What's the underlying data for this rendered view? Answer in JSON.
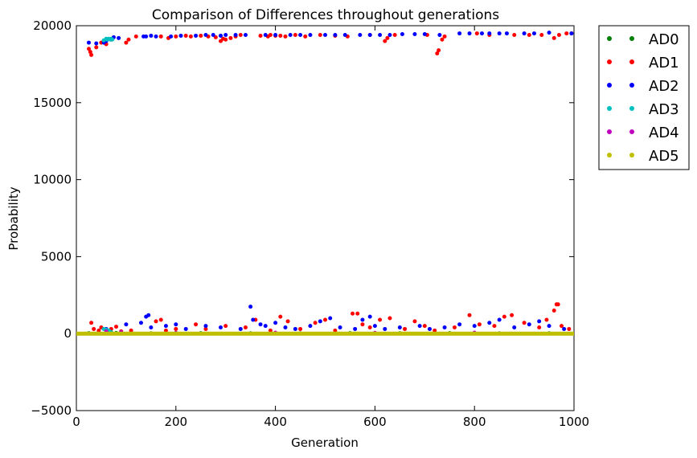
{
  "chart_data": {
    "type": "scatter",
    "title": "Comparison of Differences throughout generations",
    "xlabel": "Generation",
    "ylabel": "Probability",
    "xlim": [
      0,
      1000
    ],
    "ylim": [
      -5000,
      20000
    ],
    "xticks": [
      0,
      200,
      400,
      600,
      800,
      1000
    ],
    "yticks": [
      -5000,
      0,
      5000,
      10000,
      15000,
      20000
    ],
    "grid": false,
    "legend_position": "outside-right",
    "series": [
      {
        "name": "AD0",
        "color": "#008000",
        "points": [
          [
            25,
            30
          ],
          [
            80,
            40
          ],
          [
            150,
            20
          ],
          [
            250,
            30
          ],
          [
            350,
            25
          ],
          [
            450,
            20
          ],
          [
            550,
            30
          ],
          [
            650,
            25
          ],
          [
            750,
            30
          ],
          [
            850,
            20
          ],
          [
            950,
            25
          ]
        ]
      },
      {
        "name": "AD1",
        "color": "#ff0000",
        "points": [
          [
            25,
            18500
          ],
          [
            28,
            18300
          ],
          [
            30,
            18100
          ],
          [
            40,
            18600
          ],
          [
            50,
            18900
          ],
          [
            55,
            19000
          ],
          [
            60,
            18800
          ],
          [
            70,
            19100
          ],
          [
            100,
            18900
          ],
          [
            105,
            19100
          ],
          [
            120,
            19300
          ],
          [
            170,
            19300
          ],
          [
            185,
            19200
          ],
          [
            200,
            19300
          ],
          [
            220,
            19350
          ],
          [
            230,
            19300
          ],
          [
            250,
            19350
          ],
          [
            265,
            19300
          ],
          [
            280,
            19250
          ],
          [
            290,
            19000
          ],
          [
            295,
            19150
          ],
          [
            300,
            19100
          ],
          [
            310,
            19200
          ],
          [
            320,
            19300
          ],
          [
            330,
            19400
          ],
          [
            370,
            19350
          ],
          [
            385,
            19300
          ],
          [
            390,
            19400
          ],
          [
            400,
            19350
          ],
          [
            410,
            19350
          ],
          [
            420,
            19300
          ],
          [
            440,
            19400
          ],
          [
            460,
            19300
          ],
          [
            490,
            19400
          ],
          [
            520,
            19350
          ],
          [
            545,
            19300
          ],
          [
            590,
            19400
          ],
          [
            620,
            19000
          ],
          [
            625,
            19200
          ],
          [
            640,
            19400
          ],
          [
            705,
            19400
          ],
          [
            725,
            18200
          ],
          [
            728,
            18400
          ],
          [
            735,
            19100
          ],
          [
            740,
            19300
          ],
          [
            805,
            19500
          ],
          [
            830,
            19400
          ],
          [
            880,
            19400
          ],
          [
            910,
            19400
          ],
          [
            935,
            19400
          ],
          [
            960,
            19200
          ],
          [
            970,
            19400
          ],
          [
            985,
            19500
          ],
          [
            995,
            19500
          ],
          [
            30,
            700
          ],
          [
            35,
            300
          ],
          [
            45,
            200
          ],
          [
            50,
            400
          ],
          [
            70,
            300
          ],
          [
            80,
            450
          ],
          [
            90,
            150
          ],
          [
            110,
            200
          ],
          [
            160,
            800
          ],
          [
            170,
            900
          ],
          [
            180,
            200
          ],
          [
            200,
            300
          ],
          [
            240,
            600
          ],
          [
            260,
            300
          ],
          [
            300,
            500
          ],
          [
            340,
            400
          ],
          [
            360,
            900
          ],
          [
            390,
            200
          ],
          [
            410,
            1100
          ],
          [
            425,
            800
          ],
          [
            450,
            300
          ],
          [
            480,
            700
          ],
          [
            500,
            900
          ],
          [
            520,
            200
          ],
          [
            555,
            1300
          ],
          [
            565,
            1300
          ],
          [
            575,
            600
          ],
          [
            590,
            400
          ],
          [
            610,
            900
          ],
          [
            630,
            1000
          ],
          [
            660,
            300
          ],
          [
            680,
            800
          ],
          [
            700,
            500
          ],
          [
            720,
            200
          ],
          [
            760,
            400
          ],
          [
            790,
            1200
          ],
          [
            810,
            600
          ],
          [
            840,
            500
          ],
          [
            860,
            1100
          ],
          [
            875,
            1200
          ],
          [
            900,
            700
          ],
          [
            930,
            400
          ],
          [
            945,
            900
          ],
          [
            960,
            1500
          ],
          [
            965,
            1900
          ],
          [
            968,
            1900
          ],
          [
            975,
            500
          ],
          [
            990,
            300
          ]
        ]
      },
      {
        "name": "AD2",
        "color": "#0000ff",
        "points": [
          [
            25,
            18900
          ],
          [
            40,
            18850
          ],
          [
            55,
            18900
          ],
          [
            60,
            19000
          ],
          [
            75,
            19250
          ],
          [
            85,
            19200
          ],
          [
            135,
            19300
          ],
          [
            140,
            19300
          ],
          [
            150,
            19350
          ],
          [
            160,
            19300
          ],
          [
            190,
            19300
          ],
          [
            210,
            19350
          ],
          [
            240,
            19350
          ],
          [
            260,
            19400
          ],
          [
            275,
            19400
          ],
          [
            290,
            19350
          ],
          [
            300,
            19400
          ],
          [
            320,
            19400
          ],
          [
            340,
            19400
          ],
          [
            380,
            19400
          ],
          [
            400,
            19400
          ],
          [
            430,
            19400
          ],
          [
            450,
            19400
          ],
          [
            470,
            19400
          ],
          [
            500,
            19400
          ],
          [
            520,
            19400
          ],
          [
            540,
            19400
          ],
          [
            570,
            19400
          ],
          [
            590,
            19400
          ],
          [
            610,
            19400
          ],
          [
            630,
            19400
          ],
          [
            655,
            19450
          ],
          [
            680,
            19450
          ],
          [
            700,
            19450
          ],
          [
            730,
            19400
          ],
          [
            770,
            19500
          ],
          [
            790,
            19500
          ],
          [
            815,
            19500
          ],
          [
            830,
            19500
          ],
          [
            850,
            19500
          ],
          [
            865,
            19500
          ],
          [
            900,
            19500
          ],
          [
            920,
            19500
          ],
          [
            950,
            19550
          ],
          [
            995,
            19500
          ],
          [
            60,
            300
          ],
          [
            100,
            600
          ],
          [
            130,
            700
          ],
          [
            140,
            1100
          ],
          [
            145,
            1200
          ],
          [
            150,
            400
          ],
          [
            180,
            500
          ],
          [
            200,
            600
          ],
          [
            220,
            300
          ],
          [
            260,
            500
          ],
          [
            290,
            400
          ],
          [
            330,
            300
          ],
          [
            350,
            1750
          ],
          [
            355,
            900
          ],
          [
            370,
            600
          ],
          [
            380,
            500
          ],
          [
            400,
            700
          ],
          [
            420,
            400
          ],
          [
            440,
            300
          ],
          [
            470,
            500
          ],
          [
            490,
            800
          ],
          [
            510,
            1000
          ],
          [
            530,
            400
          ],
          [
            560,
            300
          ],
          [
            575,
            900
          ],
          [
            590,
            1100
          ],
          [
            600,
            500
          ],
          [
            620,
            300
          ],
          [
            650,
            400
          ],
          [
            690,
            500
          ],
          [
            710,
            300
          ],
          [
            740,
            400
          ],
          [
            770,
            600
          ],
          [
            800,
            500
          ],
          [
            830,
            700
          ],
          [
            850,
            900
          ],
          [
            880,
            400
          ],
          [
            910,
            600
          ],
          [
            930,
            800
          ],
          [
            950,
            500
          ],
          [
            980,
            300
          ]
        ]
      },
      {
        "name": "AD3",
        "color": "#00bfbf",
        "points": [
          [
            55,
            19050
          ],
          [
            60,
            19150
          ],
          [
            62,
            19100
          ],
          [
            65,
            19150
          ],
          [
            68,
            19100
          ],
          [
            70,
            19150
          ],
          [
            72,
            19100
          ],
          [
            55,
            300
          ],
          [
            60,
            250
          ],
          [
            65,
            200
          ],
          [
            70,
            100
          ],
          [
            90,
            80
          ]
        ]
      },
      {
        "name": "AD4",
        "color": "#bf00bf",
        "points": [
          [
            60,
            150
          ],
          [
            90,
            100
          ],
          [
            200,
            50
          ],
          [
            400,
            60
          ],
          [
            600,
            50
          ],
          [
            800,
            60
          ]
        ]
      },
      {
        "name": "AD5",
        "color": "#bfbf00",
        "points": [
          [
            0,
            0
          ],
          [
            100,
            0
          ],
          [
            200,
            0
          ],
          [
            300,
            0
          ],
          [
            400,
            0
          ],
          [
            500,
            0
          ],
          [
            600,
            0
          ],
          [
            700,
            0
          ],
          [
            800,
            0
          ],
          [
            900,
            0
          ],
          [
            1000,
            0
          ]
        ],
        "line": true
      }
    ]
  }
}
